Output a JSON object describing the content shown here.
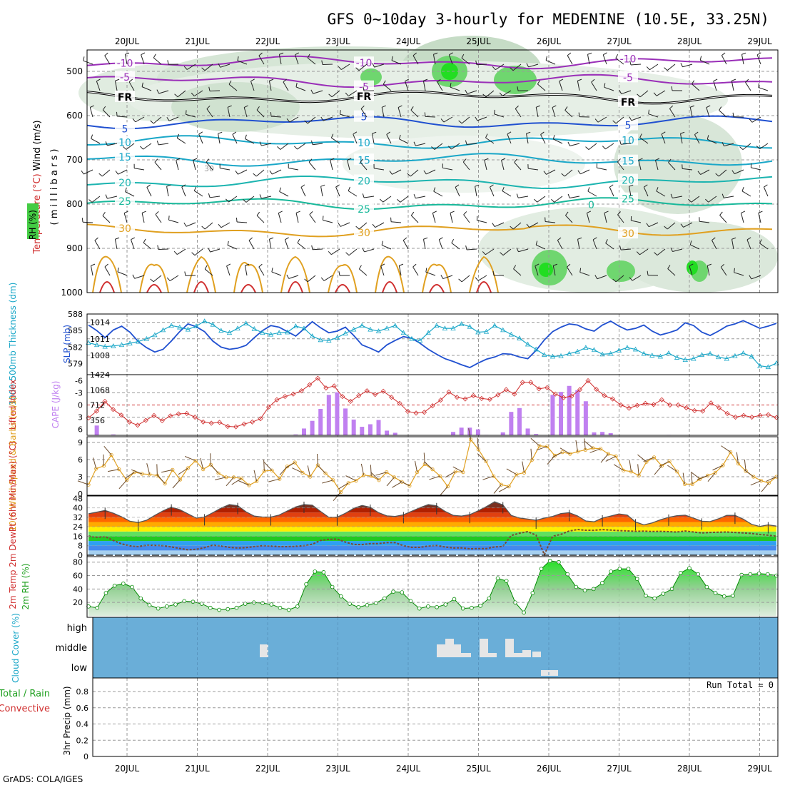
{
  "title": "GFS 0~10day 3-hourly for MEDENINE (10.5E, 33.25N)",
  "credit": "GrADS: COLA/IGES",
  "colors": {
    "purple": "#9a2fb8",
    "blue": "#2050d0",
    "cyan": "#1aa7c8",
    "teal": "#18b89a",
    "orange": "#e0a020",
    "red": "#d03030",
    "green": "#20c020",
    "grey_green": "#a8c8a8",
    "cloud_bg": "#6aaed8",
    "cloud_fill": "#e6e6e6"
  },
  "chart_data": [
    {
      "panel": "upper-air",
      "type": "heatmap",
      "title": "",
      "time_axis": [
        "20JUL",
        "21JUL",
        "22JUL",
        "23JUL",
        "24JUL",
        "25JUL",
        "26JUL",
        "27JUL",
        "28JUL",
        "29JUL"
      ],
      "ylabels": [
        "Temperature (°C)",
        "Wind (m/s)",
        "RH (%)",
        "( m i l l i b a r s )"
      ],
      "y_ticks": [
        500,
        600,
        700,
        800,
        900,
        1000
      ],
      "ylim": [
        450,
        1000
      ],
      "isotherms": [
        {
          "label": "-10",
          "pressure": 480
        },
        {
          "label": "-5",
          "pressure": 522
        },
        {
          "label": "FR",
          "pressure": 558
        },
        {
          "label": "5",
          "pressure": 615
        },
        {
          "label": "10",
          "pressure": 660
        },
        {
          "label": "15",
          "pressure": 700
        },
        {
          "label": "20",
          "pressure": 750
        },
        {
          "label": "25",
          "pressure": 800
        },
        {
          "label": "30",
          "pressure": 860
        }
      ],
      "inline_labels": [
        "30",
        "0"
      ]
    },
    {
      "panel": "thickness-slp",
      "type": "line",
      "ylabel_left": "1000-500mb Thickness (dm)",
      "ylabel_right": "SLP (mb)",
      "left_ticks": [
        "588",
        "585",
        "582",
        "579"
      ],
      "right_ticks": [
        "1014",
        "1011",
        "1008"
      ],
      "series": [
        {
          "name": "SLP (mb)",
          "values": [
            1013.5,
            1012.5,
            1011.2,
            1012.6,
            1013.3,
            1012.2,
            1010.5,
            1009.4,
            1008.6,
            1009.1,
            1010.6,
            1012.3,
            1013.7,
            1013.2,
            1012.3,
            1010.6,
            1009.5,
            1009.1,
            1009.3,
            1009.8,
            1011.2,
            1012.5,
            1013.4,
            1013.1,
            1012.3,
            1011.5,
            1012.8,
            1014.1,
            1013.0,
            1012.1,
            1012.4,
            1013.1,
            1011.6,
            1009.9,
            1009.3,
            1008.6,
            1009.9,
            1010.7,
            1011.4,
            1011.1,
            1010.2,
            1009.1,
            1008.2,
            1007.4,
            1006.9,
            1006.3,
            1005.8,
            1006.6,
            1007.3,
            1007.7,
            1008.3,
            1008.2,
            1007.7,
            1007.4,
            1008.9,
            1010.8,
            1012.3,
            1013.1,
            1013.7,
            1013.5,
            1012.8,
            1012.4,
            1013.5,
            1014.2,
            1013.3,
            1012.6,
            1012.9,
            1013.5,
            1012.4,
            1011.7,
            1012.1,
            1012.6,
            1013.9,
            1013.4,
            1012.2,
            1011.6,
            1012.4,
            1013.3,
            1013.7,
            1014.3,
            1013.6,
            1012.9,
            1013.3,
            1013.8
          ]
        },
        {
          "name": "1000-500mb Thickness (dm)",
          "values": [
            582.8,
            582.4,
            582.1,
            582.2,
            582.4,
            582.7,
            583.0,
            583.5,
            584.2,
            585.1,
            585.9,
            585.6,
            585.2,
            585.8,
            586.7,
            586.1,
            585.0,
            584.6,
            585.4,
            586.3,
            585.3,
            584.6,
            584.3,
            584.6,
            584.7,
            585.8,
            585.4,
            584.0,
            583.3,
            583.2,
            583.7,
            584.5,
            585.2,
            585.9,
            585.2,
            584.9,
            585.4,
            585.9,
            584.6,
            583.5,
            583.2,
            584.6,
            585.9,
            585.4,
            585.4,
            586.2,
            585.7,
            584.7,
            584.8,
            585.9,
            585.1,
            584.3,
            583.6,
            582.5,
            581.6,
            580.6,
            580.3,
            580.4,
            580.8,
            581.2,
            581.9,
            581.5,
            580.7,
            580.8,
            581.4,
            581.9,
            581.6,
            580.8,
            580.5,
            580.3,
            580.9,
            580.1,
            579.7,
            579.9,
            580.6,
            580.8,
            580.2,
            579.9,
            580.4,
            580.9,
            580.3,
            578.6,
            578.4,
            579.1
          ]
        }
      ]
    },
    {
      "panel": "li-cape",
      "type": "bar",
      "ylabel_left": "Lifted Index",
      "ylabel_right": "CAPE (J/kg)",
      "left_ticks": [
        "-6",
        "-3",
        "0",
        "3",
        "6"
      ],
      "right_ticks": [
        "1424",
        "1068",
        "712",
        "356"
      ],
      "series": [
        {
          "name": "Lifted Index",
          "values": [
            3.2,
            1.5,
            -0.9,
            1.1,
            2.5,
            4.2,
            5.0,
            3.8,
            2.6,
            3.9,
            2.7,
            2.2,
            2.1,
            3.0,
            4.2,
            4.5,
            4.3,
            5.3,
            5.4,
            4.7,
            4.2,
            3.4,
            0.5,
            -1.3,
            -2.1,
            -2.7,
            -3.5,
            -5.0,
            -6.6,
            -4.2,
            -4.7,
            -2.1,
            -0.9,
            -2.3,
            -3.5,
            -2.6,
            -3.4,
            -1.9,
            -0.4,
            1.6,
            2.0,
            1.8,
            0.2,
            -1.2,
            -3.2,
            -1.9,
            -1.5,
            -2.3,
            -1.6,
            -1.4,
            -2.5,
            -3.8,
            -2.7,
            -5.6,
            -5.6,
            -4.0,
            -4.3,
            -2.7,
            -1.8,
            -2.2,
            -3.8,
            -6.0,
            -3.9,
            -2.3,
            -1.5,
            0.0,
            0.8,
            0.1,
            -0.4,
            -0.1,
            -1.3,
            0.0,
            0.0,
            0.7,
            1.4,
            1.5,
            -0.5,
            0.7,
            2.1,
            3.0,
            2.6,
            3.0,
            2.6,
            2.4,
            3.1
          ]
        },
        {
          "name": "CAPE (J/kg)",
          "values": [
            0,
            230,
            0,
            20,
            0,
            0,
            0,
            0,
            0,
            0,
            0,
            0,
            0,
            0,
            0,
            0,
            0,
            0,
            0,
            0,
            0,
            0,
            0,
            0,
            0,
            20,
            160,
            340,
            620,
            950,
            1010,
            630,
            370,
            200,
            260,
            360,
            110,
            60,
            0,
            0,
            0,
            0,
            0,
            0,
            80,
            180,
            180,
            140,
            10,
            0,
            70,
            550,
            640,
            160,
            30,
            0,
            950,
            1020,
            1160,
            1060,
            800,
            70,
            80,
            50,
            0,
            0,
            0,
            0,
            0,
            0,
            10,
            0,
            0,
            0,
            0,
            0,
            0,
            0,
            0,
            0,
            0,
            0,
            0,
            0
          ]
        }
      ]
    },
    {
      "panel": "wind10m",
      "type": "line",
      "ylabel": "10m Wind Speed & Barbs (m/s)",
      "y_ticks": [
        "0",
        "3",
        "6",
        "9"
      ],
      "series": [
        {
          "name": "10m Wind Speed",
          "values": [
            1.6,
            4.4,
            4.9,
            6.8,
            4.3,
            2.4,
            3.8,
            3.5,
            3.4,
            3.2,
            1.8,
            4.2,
            2.5,
            4.5,
            5.8,
            4.3,
            5.1,
            3.6,
            2.9,
            2.9,
            2.7,
            1.5,
            2.2,
            4.0,
            4.1,
            2.6,
            4.8,
            5.5,
            3.7,
            3.0,
            5.0,
            3.6,
            2.4,
            0.3,
            1.9,
            2.3,
            3.3,
            3.1,
            2.4,
            3.8,
            2.9,
            2.1,
            1.4,
            3.8,
            5.2,
            4.3,
            3.1,
            1.3,
            3.9,
            3.8,
            9.5,
            7.8,
            5.7,
            3.1,
            1.6,
            1.3,
            3.4,
            3.7,
            5.9,
            8.4,
            8.3,
            6.7,
            7.3,
            7.0,
            7.4,
            7.7,
            8.0,
            7.9,
            7.0,
            6.6,
            4.1,
            3.9,
            3.2,
            5.6,
            6.4,
            4.9,
            5.7,
            3.9,
            1.7,
            1.7,
            2.6,
            3.2,
            3.7,
            5.0,
            7.3,
            5.3,
            4.0,
            3.0,
            2.3,
            1.9,
            3.0
          ]
        }
      ]
    },
    {
      "panel": "temp2m",
      "type": "area",
      "ylabel": "2m Temp 2m DewPt (6hr Min/Max) (°C)",
      "y_ticks": [
        "0",
        "8",
        "16",
        "24",
        "32",
        "40",
        "48"
      ],
      "series": [
        {
          "name": "2m Temp",
          "values": [
            35.0,
            36.3,
            37.8,
            35.5,
            32.4,
            28.7,
            27.6,
            29.5,
            33.6,
            37.5,
            40.6,
            38.5,
            34.9,
            31.3,
            32.3,
            35.9,
            39.8,
            42.8,
            41.8,
            36.6,
            33.0,
            32.2,
            32.2,
            33.9,
            37.4,
            40.8,
            42.8,
            42.2,
            37.0,
            32.0,
            32.1,
            35.4,
            39.5,
            42.0,
            40.4,
            35.9,
            33.2,
            32.8,
            34.1,
            37.1,
            40.2,
            42.7,
            41.7,
            37.1,
            33.7,
            33.1,
            34.2,
            37.5,
            41.0,
            45.1,
            42.5,
            33.6,
            31.4,
            30.5,
            29.5,
            31.3,
            32.8,
            35.2,
            35.9,
            33.2,
            28.9,
            28.2,
            31.4,
            33.1,
            34.9,
            33.9,
            28.1,
            25.6,
            27.3,
            29.9,
            32.0,
            33.4,
            33.8,
            31.3,
            28.7,
            28.4,
            30.7,
            33.6,
            33.6,
            30.4,
            26.1,
            24.3,
            25.6,
            24.6
          ]
        },
        {
          "name": "2m DewPt",
          "values": [
            16.2,
            15.1,
            15.7,
            12.5,
            9.6,
            7.9,
            7.3,
            8.4,
            8.3,
            8.0,
            7.0,
            5.7,
            4.6,
            5.0,
            6.4,
            8.5,
            7.8,
            6.6,
            6.1,
            6.4,
            7.3,
            8.0,
            7.7,
            7.2,
            7.2,
            7.5,
            8.0,
            9.3,
            12.5,
            13.4,
            13.6,
            11.1,
            9.1,
            9.0,
            9.8,
            9.8,
            10.6,
            10.6,
            8.0,
            6.6,
            6.6,
            7.8,
            8.2,
            7.0,
            6.1,
            6.2,
            5.4,
            5.6,
            5.6,
            7.0,
            7.4,
            16.6,
            18.6,
            19.9,
            16.9,
            0.5,
            16.0,
            17.6,
            20.4,
            21.7,
            21.1,
            21.0,
            21.6,
            21.2,
            20.8,
            20.5,
            20.1,
            20.3,
            20.0,
            20.1,
            19.9,
            19.6,
            20.4,
            19.6,
            18.8,
            19.2,
            19.4,
            19.6,
            19.2,
            18.8,
            18.4,
            17.5,
            16.9,
            16.0
          ]
        }
      ]
    },
    {
      "panel": "rh2m",
      "type": "area",
      "ylabel": "2m RH (%)",
      "y_ticks": [
        "20",
        "40",
        "60",
        "80"
      ],
      "series": [
        {
          "name": "2m RH",
          "values": [
            14,
            12,
            34,
            45,
            48,
            43,
            26,
            16,
            11,
            14,
            17,
            22,
            21,
            18,
            12,
            9,
            10,
            12,
            18,
            20,
            19,
            17,
            12,
            9,
            14,
            47,
            66,
            65,
            43,
            29,
            18,
            13,
            16,
            19,
            26,
            36,
            35,
            22,
            11,
            14,
            13,
            17,
            25,
            11,
            12,
            15,
            26,
            56,
            52,
            20,
            5,
            34,
            70,
            82,
            80,
            62,
            43,
            38,
            40,
            49,
            66,
            70,
            70,
            55,
            30,
            26,
            33,
            40,
            64,
            71,
            62,
            43,
            34,
            29,
            30,
            61,
            62,
            63,
            62,
            60
          ]
        }
      ]
    },
    {
      "panel": "cloud",
      "type": "bar",
      "ylabel": "Cloud Cover (%)",
      "levels": [
        "high",
        "middle",
        "low"
      ]
    },
    {
      "panel": "precip",
      "type": "bar",
      "ylabel_left": "Total / Rain Convective",
      "ylabel": "3hr Precip (mm)",
      "y_ticks": [
        "0",
        "0.2",
        "0.4",
        "0.6",
        "0.8"
      ],
      "run_total": "Run Total = 0",
      "values": []
    }
  ]
}
